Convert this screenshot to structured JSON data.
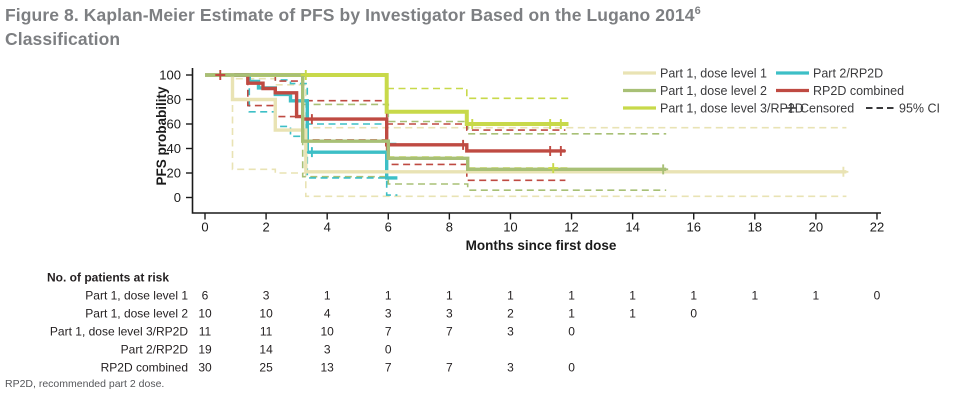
{
  "figure": {
    "title_part1": "Figure 8. Kaplan-Meier Estimate of PFS by Investigator Based on the Lugano 2014",
    "title_superscript": "6",
    "title_part2": "Classification",
    "footnote": "RP2D, recommended part 2 dose."
  },
  "colors": {
    "title_gray": "#7d7f82",
    "axis_black": "#1a1a1a",
    "legend_text": "#3a3a3c",
    "table_text": "#231f20"
  },
  "chart_data": {
    "type": "line",
    "subtype": "kaplan-meier-step",
    "title": "",
    "xlabel": "Months since first dose",
    "ylabel": "PFS probability",
    "xlim": [
      0,
      22
    ],
    "ylim": [
      0,
      100
    ],
    "xticks": [
      0,
      2,
      4,
      6,
      8,
      10,
      12,
      14,
      16,
      18,
      20,
      22
    ],
    "yticks": [
      0,
      20,
      40,
      60,
      80,
      100
    ],
    "grid": false,
    "legend_position": "top-right, two columns, inside plot",
    "censored_label": "Censored",
    "censored_marker": "+",
    "ci_label": "95% CI",
    "series": [
      {
        "id": "part1-dose1",
        "name": "Part 1, dose level 1",
        "color": "#e9e3b4",
        "steps": [
          [
            0,
            100
          ],
          [
            0.9,
            80
          ],
          [
            2.3,
            55
          ],
          [
            3.3,
            21
          ]
        ],
        "end": 21.0,
        "censors": [
          [
            20.9,
            21
          ]
        ],
        "ci_upper": {
          "steps": [
            [
              0,
              100
            ],
            [
              0.9,
              97
            ],
            [
              2.3,
              92
            ],
            [
              3.3,
              57
            ]
          ],
          "end": 21.0
        },
        "ci_lower": {
          "steps": [
            [
              0,
              100
            ],
            [
              0.9,
              23
            ],
            [
              2.3,
              20
            ],
            [
              3.3,
              1
            ]
          ],
          "end": 21.0
        }
      },
      {
        "id": "part1-dose2",
        "name": "Part 1, dose level 2",
        "color": "#a8c076",
        "steps": [
          [
            0,
            100
          ],
          [
            3.2,
            46
          ],
          [
            6.0,
            32
          ],
          [
            8.6,
            23
          ]
        ],
        "end": 15.1,
        "censors": [
          [
            15.0,
            23
          ]
        ],
        "ci_upper": {
          "steps": [
            [
              0,
              100
            ],
            [
              3.2,
              76
            ],
            [
              6.0,
              62
            ],
            [
              8.6,
              52
            ]
          ],
          "end": 15.1
        },
        "ci_lower": {
          "steps": [
            [
              0,
              100
            ],
            [
              3.2,
              17
            ],
            [
              6.0,
              11
            ],
            [
              8.6,
              6
            ]
          ],
          "end": 15.1
        }
      },
      {
        "id": "part1-dose3-rp2d",
        "name": "Part 1, dose level 3/RP2D",
        "color": "#c8d94a",
        "steps": [
          [
            0,
            100
          ],
          [
            5.95,
            70
          ],
          [
            8.57,
            60
          ]
        ],
        "end": 11.9,
        "censors": [
          [
            3.3,
            100
          ],
          [
            8.75,
            60
          ],
          [
            11.3,
            60
          ],
          [
            11.65,
            60
          ],
          [
            11.4,
            24
          ]
        ],
        "ci_upper": {
          "steps": [
            [
              0,
              100
            ],
            [
              5.95,
              89
            ],
            [
              8.57,
              81
            ]
          ],
          "end": 11.9
        },
        "ci_lower": {
          "steps": [
            [
              0,
              100
            ],
            [
              5.95,
              33
            ],
            [
              8.57,
              24
            ]
          ],
          "end": 11.9
        }
      },
      {
        "id": "part2-rp2d",
        "name": "Part 2/RP2D",
        "color": "#3dbfc6",
        "steps": [
          [
            0,
            100
          ],
          [
            1.45,
            94.7
          ],
          [
            1.75,
            89.5
          ],
          [
            2.3,
            84.2
          ],
          [
            2.8,
            78.9
          ],
          [
            3.35,
            37
          ],
          [
            5.95,
            16
          ]
        ],
        "end": 6.3,
        "censors": [
          [
            3.5,
            37
          ]
        ],
        "ci_upper": {
          "steps": [
            [
              0,
              100
            ],
            [
              1.45,
              99
            ],
            [
              2.3,
              96
            ],
            [
              2.8,
              93
            ],
            [
              3.35,
              60
            ],
            [
              5.95,
              44
            ]
          ],
          "end": 6.3
        },
        "ci_lower": {
          "steps": [
            [
              0,
              100
            ],
            [
              1.45,
              70
            ],
            [
              2.3,
              58
            ],
            [
              2.8,
              50
            ],
            [
              3.35,
              16
            ],
            [
              5.95,
              2
            ]
          ],
          "end": 6.3
        }
      },
      {
        "id": "rp2d-combined",
        "name": "RP2D combined",
        "color": "#bf4a42",
        "steps": [
          [
            0,
            100
          ],
          [
            1.4,
            93.3
          ],
          [
            1.9,
            89
          ],
          [
            2.3,
            85.5
          ],
          [
            3.0,
            66
          ],
          [
            3.2,
            64
          ],
          [
            5.95,
            43
          ],
          [
            8.57,
            38
          ]
        ],
        "end": 11.8,
        "censors": [
          [
            0.5,
            100
          ],
          [
            3.5,
            64
          ],
          [
            8.45,
            43
          ],
          [
            11.3,
            38
          ],
          [
            11.65,
            38
          ]
        ],
        "ci_upper": {
          "steps": [
            [
              0,
              100
            ],
            [
              1.4,
              99
            ],
            [
              2.3,
              95
            ],
            [
              3.2,
              79
            ],
            [
              5.95,
              60
            ],
            [
              8.57,
              55
            ]
          ],
          "end": 11.8
        },
        "ci_lower": {
          "steps": [
            [
              0,
              100
            ],
            [
              1.4,
              75
            ],
            [
              2.3,
              66
            ],
            [
              3.2,
              47
            ],
            [
              5.95,
              27
            ],
            [
              8.57,
              14
            ]
          ],
          "end": 11.8
        }
      }
    ]
  },
  "risk_table": {
    "title": "No. of patients at risk",
    "months": [
      0,
      2,
      4,
      6,
      8,
      10,
      12,
      14,
      16,
      18,
      20,
      22
    ],
    "rows": [
      {
        "label": "Part 1, dose level 1",
        "values": [
          6,
          3,
          1,
          1,
          1,
          1,
          1,
          1,
          1,
          1,
          1,
          0
        ]
      },
      {
        "label": "Part 1, dose level 2",
        "values": [
          10,
          10,
          4,
          3,
          3,
          2,
          1,
          1,
          0
        ]
      },
      {
        "label": "Part 1, dose level 3/RP2D",
        "values": [
          11,
          11,
          10,
          7,
          7,
          3,
          0
        ]
      },
      {
        "label": "Part 2/RP2D",
        "values": [
          19,
          14,
          3,
          0
        ]
      },
      {
        "label": "RP2D combined",
        "values": [
          30,
          25,
          13,
          7,
          7,
          3,
          0
        ]
      }
    ]
  }
}
